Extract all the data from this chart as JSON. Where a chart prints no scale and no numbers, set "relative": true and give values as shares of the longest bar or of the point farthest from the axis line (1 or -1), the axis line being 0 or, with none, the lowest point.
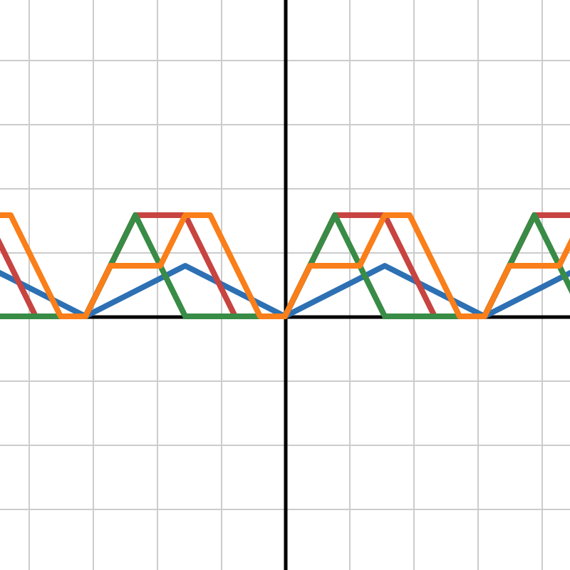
{
  "chart_data": {
    "type": "line",
    "relative": true,
    "grid": true,
    "marker": "none",
    "line_style": "solid",
    "categories": [
      null,
      null,
      null,
      null,
      null,
      null,
      null,
      null,
      null,
      null,
      null,
      null,
      null,
      null,
      null,
      null,
      null,
      null,
      null,
      null,
      null,
      null,
      null,
      null,
      null
    ],
    "series": [
      {
        "color": "#2d70b3",
        "values": [
          0.5,
          0.375,
          0.25,
          0.125,
          0,
          0.125,
          0.25,
          0.375,
          0.5,
          0.375,
          0.25,
          0.125,
          0,
          0.125,
          0.25,
          0.375,
          0.5,
          0.375,
          0.25,
          0.125,
          0,
          0.125,
          0.25,
          0.375,
          0.5
        ]
      },
      {
        "color": "#c74440",
        "values": [
          1,
          0.5,
          0,
          0,
          0,
          0.5,
          1,
          1,
          1,
          0.5,
          0,
          0,
          0,
          0.5,
          1,
          1,
          1,
          0.5,
          0,
          0,
          0,
          0.5,
          1,
          1,
          1
        ]
      },
      {
        "color": "#388c46",
        "values": [
          0,
          0,
          0,
          0,
          0,
          0.5,
          1,
          0.5,
          0,
          0,
          0,
          0,
          0,
          0.5,
          1,
          0.5,
          0,
          0,
          0,
          0,
          0,
          0.5,
          1,
          0.5,
          0
        ]
      },
      {
        "color": "#fa7e19",
        "values": [
          1,
          1,
          0.5,
          0,
          0,
          0.5,
          0.5,
          0.5,
          1,
          1,
          0.5,
          0,
          0,
          0.5,
          0.5,
          0.5,
          1,
          1,
          0.5,
          0,
          0,
          0.5,
          0.5,
          0.5,
          1
        ]
      }
    ]
  }
}
